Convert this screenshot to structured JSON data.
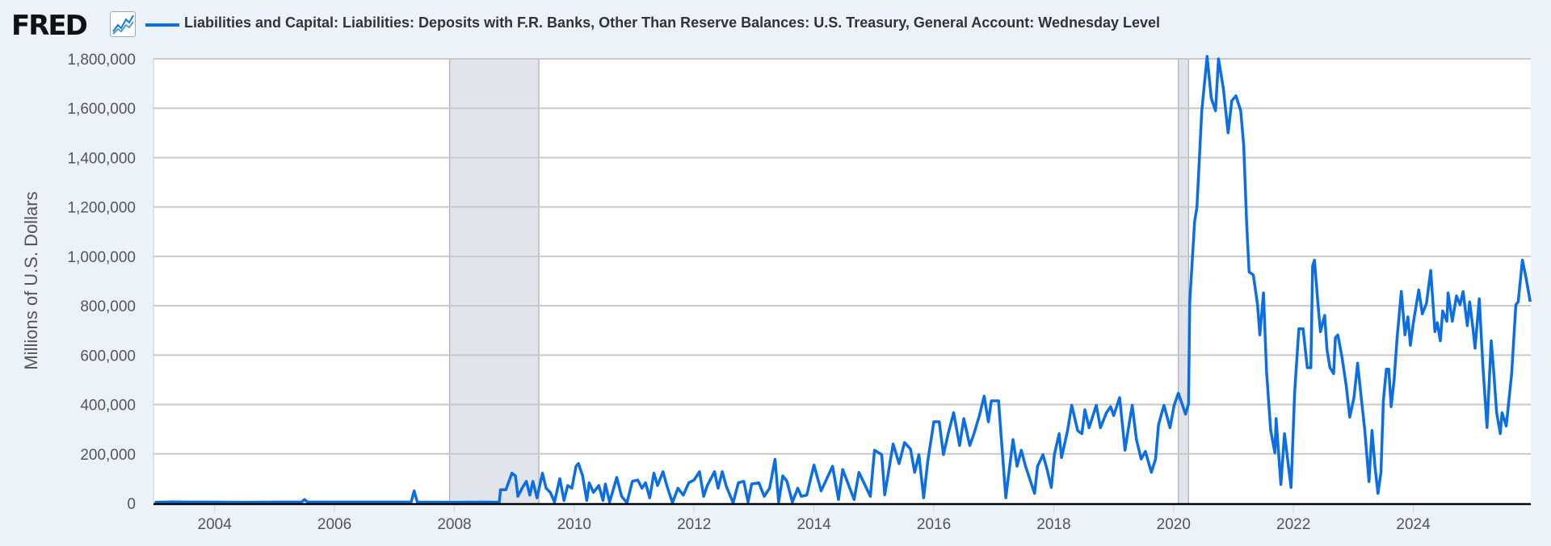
{
  "header": {
    "logo_text": "FRED",
    "series_title": "Liabilities and Capital: Liabilities: Deposits with F.R. Banks, Other Than Reserve Balances: U.S. Treasury, General Account: Wednesday Level"
  },
  "colors": {
    "line": "#0b6fe3",
    "background": "#ebf2fa",
    "plot": "#ffffff",
    "grid": "#c8c8c8",
    "recession": "#e1e5eb"
  },
  "chart_data": {
    "type": "line",
    "title": "Liabilities and Capital: Liabilities: Deposits with F.R. Banks, Other Than Reserve Balances: U.S. Treasury, General Account: Wednesday Level",
    "xlabel": "",
    "ylabel": "Millions of U.S. Dollars",
    "xlim": [
      2002.98,
      2025.96
    ],
    "ylim": [
      0,
      1800000
    ],
    "grid": true,
    "legend": "top-left",
    "x_ticks": [
      "2004",
      "2006",
      "2008",
      "2010",
      "2012",
      "2014",
      "2016",
      "2018",
      "2020",
      "2022",
      "2024"
    ],
    "y_ticks": [
      "0",
      "200,000",
      "400,000",
      "600,000",
      "800,000",
      "1,000,000",
      "1,200,000",
      "1,400,000",
      "1,600,000",
      "1,800,000"
    ],
    "recessions": [
      [
        2007.92,
        2009.41
      ],
      [
        2020.08,
        2020.25
      ]
    ],
    "series": [
      {
        "points": [
          [
            2003.0,
            4000
          ],
          [
            2003.3,
            6000
          ],
          [
            2003.6,
            5000
          ],
          [
            2004.0,
            5000
          ],
          [
            2004.5,
            4000
          ],
          [
            2005.0,
            5000
          ],
          [
            2005.45,
            5000
          ],
          [
            2005.5,
            15000
          ],
          [
            2005.55,
            5000
          ],
          [
            2006.0,
            5000
          ],
          [
            2006.5,
            5000
          ],
          [
            2007.0,
            5000
          ],
          [
            2007.28,
            5000
          ],
          [
            2007.33,
            50000
          ],
          [
            2007.38,
            5000
          ],
          [
            2008.0,
            4000
          ],
          [
            2008.5,
            5000
          ],
          [
            2008.75,
            4000
          ],
          [
            2008.77,
            55000
          ],
          [
            2008.86,
            55000
          ],
          [
            2008.96,
            122000
          ],
          [
            2009.02,
            111000
          ],
          [
            2009.06,
            28000
          ],
          [
            2009.13,
            61000
          ],
          [
            2009.2,
            89000
          ],
          [
            2009.26,
            33000
          ],
          [
            2009.31,
            89000
          ],
          [
            2009.38,
            22000
          ],
          [
            2009.47,
            122000
          ],
          [
            2009.53,
            61000
          ],
          [
            2009.6,
            44000
          ],
          [
            2009.67,
            5000
          ],
          [
            2009.76,
            100000
          ],
          [
            2009.83,
            11000
          ],
          [
            2009.89,
            72000
          ],
          [
            2009.96,
            61000
          ],
          [
            2010.03,
            150000
          ],
          [
            2010.07,
            161000
          ],
          [
            2010.14,
            111000
          ],
          [
            2010.21,
            11000
          ],
          [
            2010.25,
            83000
          ],
          [
            2010.32,
            44000
          ],
          [
            2010.41,
            72000
          ],
          [
            2010.48,
            11000
          ],
          [
            2010.52,
            78000
          ],
          [
            2010.59,
            5000
          ],
          [
            2010.65,
            55000
          ],
          [
            2010.71,
            105000
          ],
          [
            2010.79,
            28000
          ],
          [
            2010.88,
            2000
          ],
          [
            2010.97,
            89000
          ],
          [
            2011.06,
            94000
          ],
          [
            2011.13,
            61000
          ],
          [
            2011.19,
            83000
          ],
          [
            2011.26,
            22000
          ],
          [
            2011.33,
            122000
          ],
          [
            2011.39,
            72000
          ],
          [
            2011.48,
            128000
          ],
          [
            2011.55,
            67000
          ],
          [
            2011.64,
            2000
          ],
          [
            2011.73,
            61000
          ],
          [
            2011.82,
            33000
          ],
          [
            2011.91,
            83000
          ],
          [
            2012.0,
            94000
          ],
          [
            2012.09,
            128000
          ],
          [
            2012.16,
            28000
          ],
          [
            2012.22,
            72000
          ],
          [
            2012.34,
            128000
          ],
          [
            2012.4,
            61000
          ],
          [
            2012.47,
            128000
          ],
          [
            2012.54,
            67000
          ],
          [
            2012.65,
            2000
          ],
          [
            2012.74,
            83000
          ],
          [
            2012.83,
            89000
          ],
          [
            2012.9,
            5000
          ],
          [
            2012.96,
            78000
          ],
          [
            2013.08,
            83000
          ],
          [
            2013.17,
            28000
          ],
          [
            2013.26,
            61000
          ],
          [
            2013.35,
            178000
          ],
          [
            2013.41,
            5000
          ],
          [
            2013.48,
            111000
          ],
          [
            2013.55,
            89000
          ],
          [
            2013.64,
            5000
          ],
          [
            2013.73,
            61000
          ],
          [
            2013.79,
            28000
          ],
          [
            2013.88,
            33000
          ],
          [
            2014.0,
            155000
          ],
          [
            2014.12,
            50000
          ],
          [
            2014.31,
            150000
          ],
          [
            2014.41,
            15000
          ],
          [
            2014.48,
            137000
          ],
          [
            2014.67,
            15000
          ],
          [
            2014.75,
            125000
          ],
          [
            2014.94,
            28000
          ],
          [
            2015.01,
            215000
          ],
          [
            2015.13,
            197000
          ],
          [
            2015.18,
            34000
          ],
          [
            2015.32,
            240000
          ],
          [
            2015.42,
            160000
          ],
          [
            2015.51,
            246000
          ],
          [
            2015.61,
            220000
          ],
          [
            2015.68,
            125000
          ],
          [
            2015.75,
            197000
          ],
          [
            2015.83,
            22000
          ],
          [
            2015.9,
            173000
          ],
          [
            2016.0,
            330000
          ],
          [
            2016.09,
            330000
          ],
          [
            2016.16,
            197000
          ],
          [
            2016.24,
            282000
          ],
          [
            2016.33,
            367000
          ],
          [
            2016.43,
            234000
          ],
          [
            2016.5,
            343000
          ],
          [
            2016.6,
            234000
          ],
          [
            2016.67,
            282000
          ],
          [
            2016.76,
            355000
          ],
          [
            2016.84,
            434000
          ],
          [
            2016.91,
            330000
          ],
          [
            2016.96,
            415000
          ],
          [
            2017.08,
            415000
          ],
          [
            2017.12,
            282000
          ],
          [
            2017.2,
            22000
          ],
          [
            2017.32,
            258000
          ],
          [
            2017.39,
            150000
          ],
          [
            2017.46,
            215000
          ],
          [
            2017.53,
            150000
          ],
          [
            2017.68,
            40000
          ],
          [
            2017.73,
            150000
          ],
          [
            2017.82,
            197000
          ],
          [
            2017.89,
            137000
          ],
          [
            2017.96,
            64000
          ],
          [
            2018.01,
            197000
          ],
          [
            2018.09,
            282000
          ],
          [
            2018.13,
            185000
          ],
          [
            2018.23,
            294000
          ],
          [
            2018.3,
            397000
          ],
          [
            2018.4,
            294000
          ],
          [
            2018.47,
            282000
          ],
          [
            2018.52,
            379000
          ],
          [
            2018.59,
            306000
          ],
          [
            2018.71,
            397000
          ],
          [
            2018.78,
            306000
          ],
          [
            2018.88,
            367000
          ],
          [
            2018.95,
            391000
          ],
          [
            2019.0,
            355000
          ],
          [
            2019.1,
            428000
          ],
          [
            2019.19,
            215000
          ],
          [
            2019.24,
            294000
          ],
          [
            2019.31,
            397000
          ],
          [
            2019.38,
            258000
          ],
          [
            2019.46,
            179000
          ],
          [
            2019.53,
            210000
          ],
          [
            2019.63,
            125000
          ],
          [
            2019.7,
            179000
          ],
          [
            2019.75,
            319000
          ],
          [
            2019.84,
            397000
          ],
          [
            2019.94,
            306000
          ],
          [
            2020.01,
            397000
          ],
          [
            2020.08,
            446000
          ],
          [
            2020.2,
            361000
          ],
          [
            2020.25,
            403000
          ],
          [
            2020.27,
            815000
          ],
          [
            2020.35,
            1140000
          ],
          [
            2020.39,
            1200000
          ],
          [
            2020.47,
            1590000
          ],
          [
            2020.56,
            1810000
          ],
          [
            2020.63,
            1640000
          ],
          [
            2020.7,
            1590000
          ],
          [
            2020.75,
            1800000
          ],
          [
            2020.83,
            1680000
          ],
          [
            2020.91,
            1500000
          ],
          [
            2020.97,
            1630000
          ],
          [
            2021.04,
            1650000
          ],
          [
            2021.12,
            1590000
          ],
          [
            2021.17,
            1450000
          ],
          [
            2021.22,
            1130000
          ],
          [
            2021.26,
            937000
          ],
          [
            2021.33,
            925000
          ],
          [
            2021.4,
            804000
          ],
          [
            2021.44,
            682000
          ],
          [
            2021.5,
            852000
          ],
          [
            2021.55,
            537000
          ],
          [
            2021.62,
            295000
          ],
          [
            2021.69,
            204000
          ],
          [
            2021.71,
            343000
          ],
          [
            2021.79,
            76000
          ],
          [
            2021.85,
            282000
          ],
          [
            2021.96,
            64000
          ],
          [
            2022.02,
            452000
          ],
          [
            2022.09,
            707000
          ],
          [
            2022.16,
            707000
          ],
          [
            2022.23,
            549000
          ],
          [
            2022.29,
            549000
          ],
          [
            2022.32,
            961000
          ],
          [
            2022.35,
            985000
          ],
          [
            2022.41,
            804000
          ],
          [
            2022.45,
            695000
          ],
          [
            2022.52,
            761000
          ],
          [
            2022.56,
            622000
          ],
          [
            2022.61,
            549000
          ],
          [
            2022.67,
            525000
          ],
          [
            2022.7,
            670000
          ],
          [
            2022.74,
            682000
          ],
          [
            2022.81,
            591000
          ],
          [
            2022.88,
            476000
          ],
          [
            2022.94,
            349000
          ],
          [
            2023.01,
            428000
          ],
          [
            2023.07,
            567000
          ],
          [
            2023.12,
            452000
          ],
          [
            2023.19,
            295000
          ],
          [
            2023.26,
            88000
          ],
          [
            2023.31,
            295000
          ],
          [
            2023.36,
            149000
          ],
          [
            2023.41,
            40000
          ],
          [
            2023.46,
            125000
          ],
          [
            2023.5,
            416000
          ],
          [
            2023.55,
            543000
          ],
          [
            2023.59,
            543000
          ],
          [
            2023.63,
            391000
          ],
          [
            2023.68,
            500000
          ],
          [
            2023.73,
            670000
          ],
          [
            2023.8,
            858000
          ],
          [
            2023.86,
            682000
          ],
          [
            2023.91,
            755000
          ],
          [
            2023.95,
            640000
          ],
          [
            2024.0,
            731000
          ],
          [
            2024.09,
            864000
          ],
          [
            2024.15,
            767000
          ],
          [
            2024.22,
            810000
          ],
          [
            2024.29,
            943000
          ],
          [
            2024.36,
            695000
          ],
          [
            2024.4,
            731000
          ],
          [
            2024.45,
            658000
          ],
          [
            2024.49,
            779000
          ],
          [
            2024.56,
            737000
          ],
          [
            2024.58,
            852000
          ],
          [
            2024.65,
            737000
          ],
          [
            2024.72,
            840000
          ],
          [
            2024.78,
            804000
          ],
          [
            2024.83,
            858000
          ],
          [
            2024.9,
            719000
          ],
          [
            2024.94,
            816000
          ],
          [
            2024.99,
            719000
          ],
          [
            2025.03,
            628000
          ],
          [
            2025.1,
            828000
          ],
          [
            2025.16,
            561000
          ],
          [
            2025.23,
            307000
          ],
          [
            2025.3,
            658000
          ],
          [
            2025.34,
            537000
          ],
          [
            2025.39,
            367000
          ],
          [
            2025.45,
            282000
          ],
          [
            2025.48,
            367000
          ],
          [
            2025.55,
            313000
          ],
          [
            2025.64,
            525000
          ],
          [
            2025.71,
            804000
          ],
          [
            2025.75,
            816000
          ],
          [
            2025.82,
            985000
          ],
          [
            2025.88,
            913000
          ],
          [
            2025.95,
            816000
          ]
        ]
      }
    ]
  }
}
